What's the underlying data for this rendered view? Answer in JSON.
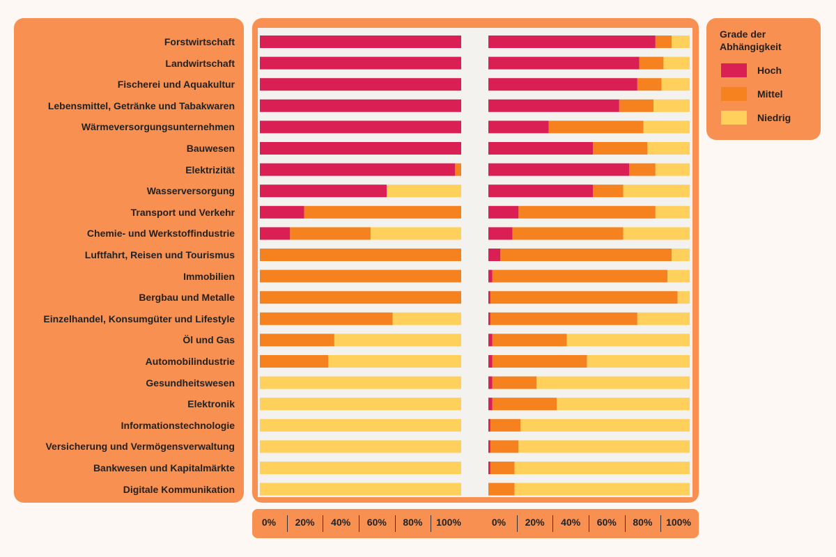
{
  "chart_data": {
    "type": "bar",
    "orientation": "horizontal",
    "stacked": true,
    "categories": [
      "Forstwirtschaft",
      "Landwirtschaft",
      "Fischerei und Aquakultur",
      "Lebensmittel, Getränke und Tabakwaren",
      "Wärmeversorgungsunternehmen",
      "Bauwesen",
      "Elektrizität",
      "Wasserversorgung",
      "Transport und Verkehr",
      "Chemie- und Werkstoffindustrie",
      "Luftfahrt, Reisen und Tourismus",
      "Immobilien",
      "Bergbau und Metalle",
      "Einzelhandel, Konsumgüter und Lifestyle",
      "Öl und Gas ",
      "Automobilindustrie",
      "Gesundheitswesen",
      "Elektronik",
      "Informationstechnologie",
      "Versicherung und Vermögensverwaltung",
      "Bankwesen und Kapitalmärkte",
      "Digitale Kommunikation"
    ],
    "panels": [
      {
        "series": [
          {
            "name": "Hoch",
            "values": [
              100,
              100,
              100,
              100,
              100,
              100,
              97,
              63,
              22,
              15,
              0,
              0,
              0,
              0,
              0,
              0,
              0,
              0,
              0,
              0,
              0,
              0
            ]
          },
          {
            "name": "Mittel",
            "values": [
              0,
              0,
              0,
              0,
              0,
              0,
              3,
              0,
              78,
              40,
              100,
              100,
              100,
              66,
              37,
              34,
              0,
              0,
              0,
              0,
              0,
              0
            ]
          },
          {
            "name": "Niedrig",
            "values": [
              0,
              0,
              0,
              0,
              0,
              0,
              0,
              37,
              0,
              45,
              0,
              0,
              0,
              34,
              63,
              66,
              100,
              100,
              100,
              100,
              100,
              100
            ]
          }
        ],
        "xlim": [
          0,
          100
        ],
        "tick_labels": [
          "0%",
          "20%",
          "40%",
          "60%",
          "80%",
          "100%"
        ]
      },
      {
        "series": [
          {
            "name": "Hoch",
            "values": [
              83,
              75,
              74,
              65,
              30,
              52,
              70,
              52,
              15,
              12,
              6,
              2,
              1,
              1,
              2,
              2,
              2,
              2,
              1,
              1,
              1,
              0
            ]
          },
          {
            "name": "Mittel",
            "values": [
              8,
              12,
              12,
              17,
              47,
              27,
              13,
              15,
              68,
              55,
              85,
              87,
              93,
              73,
              37,
              47,
              22,
              32,
              15,
              14,
              12,
              13
            ]
          },
          {
            "name": "Niedrig",
            "values": [
              9,
              13,
              14,
              18,
              23,
              21,
              17,
              33,
              17,
              33,
              9,
              11,
              6,
              26,
              61,
              51,
              76,
              66,
              84,
              85,
              87,
              87
            ]
          }
        ],
        "xlim": [
          0,
          100
        ],
        "tick_labels": [
          "0%",
          "20%",
          "40%",
          "60%",
          "80%",
          "100%"
        ]
      }
    ],
    "legend": {
      "title": "Grade der Abhängigkeit",
      "position": "right",
      "entries": [
        {
          "name": "Hoch",
          "color": "#d91f53"
        },
        {
          "name": "Mittel",
          "color": "#f5821f"
        },
        {
          "name": "Niedrig",
          "color": "#ffd05c"
        }
      ]
    },
    "grid": false
  }
}
